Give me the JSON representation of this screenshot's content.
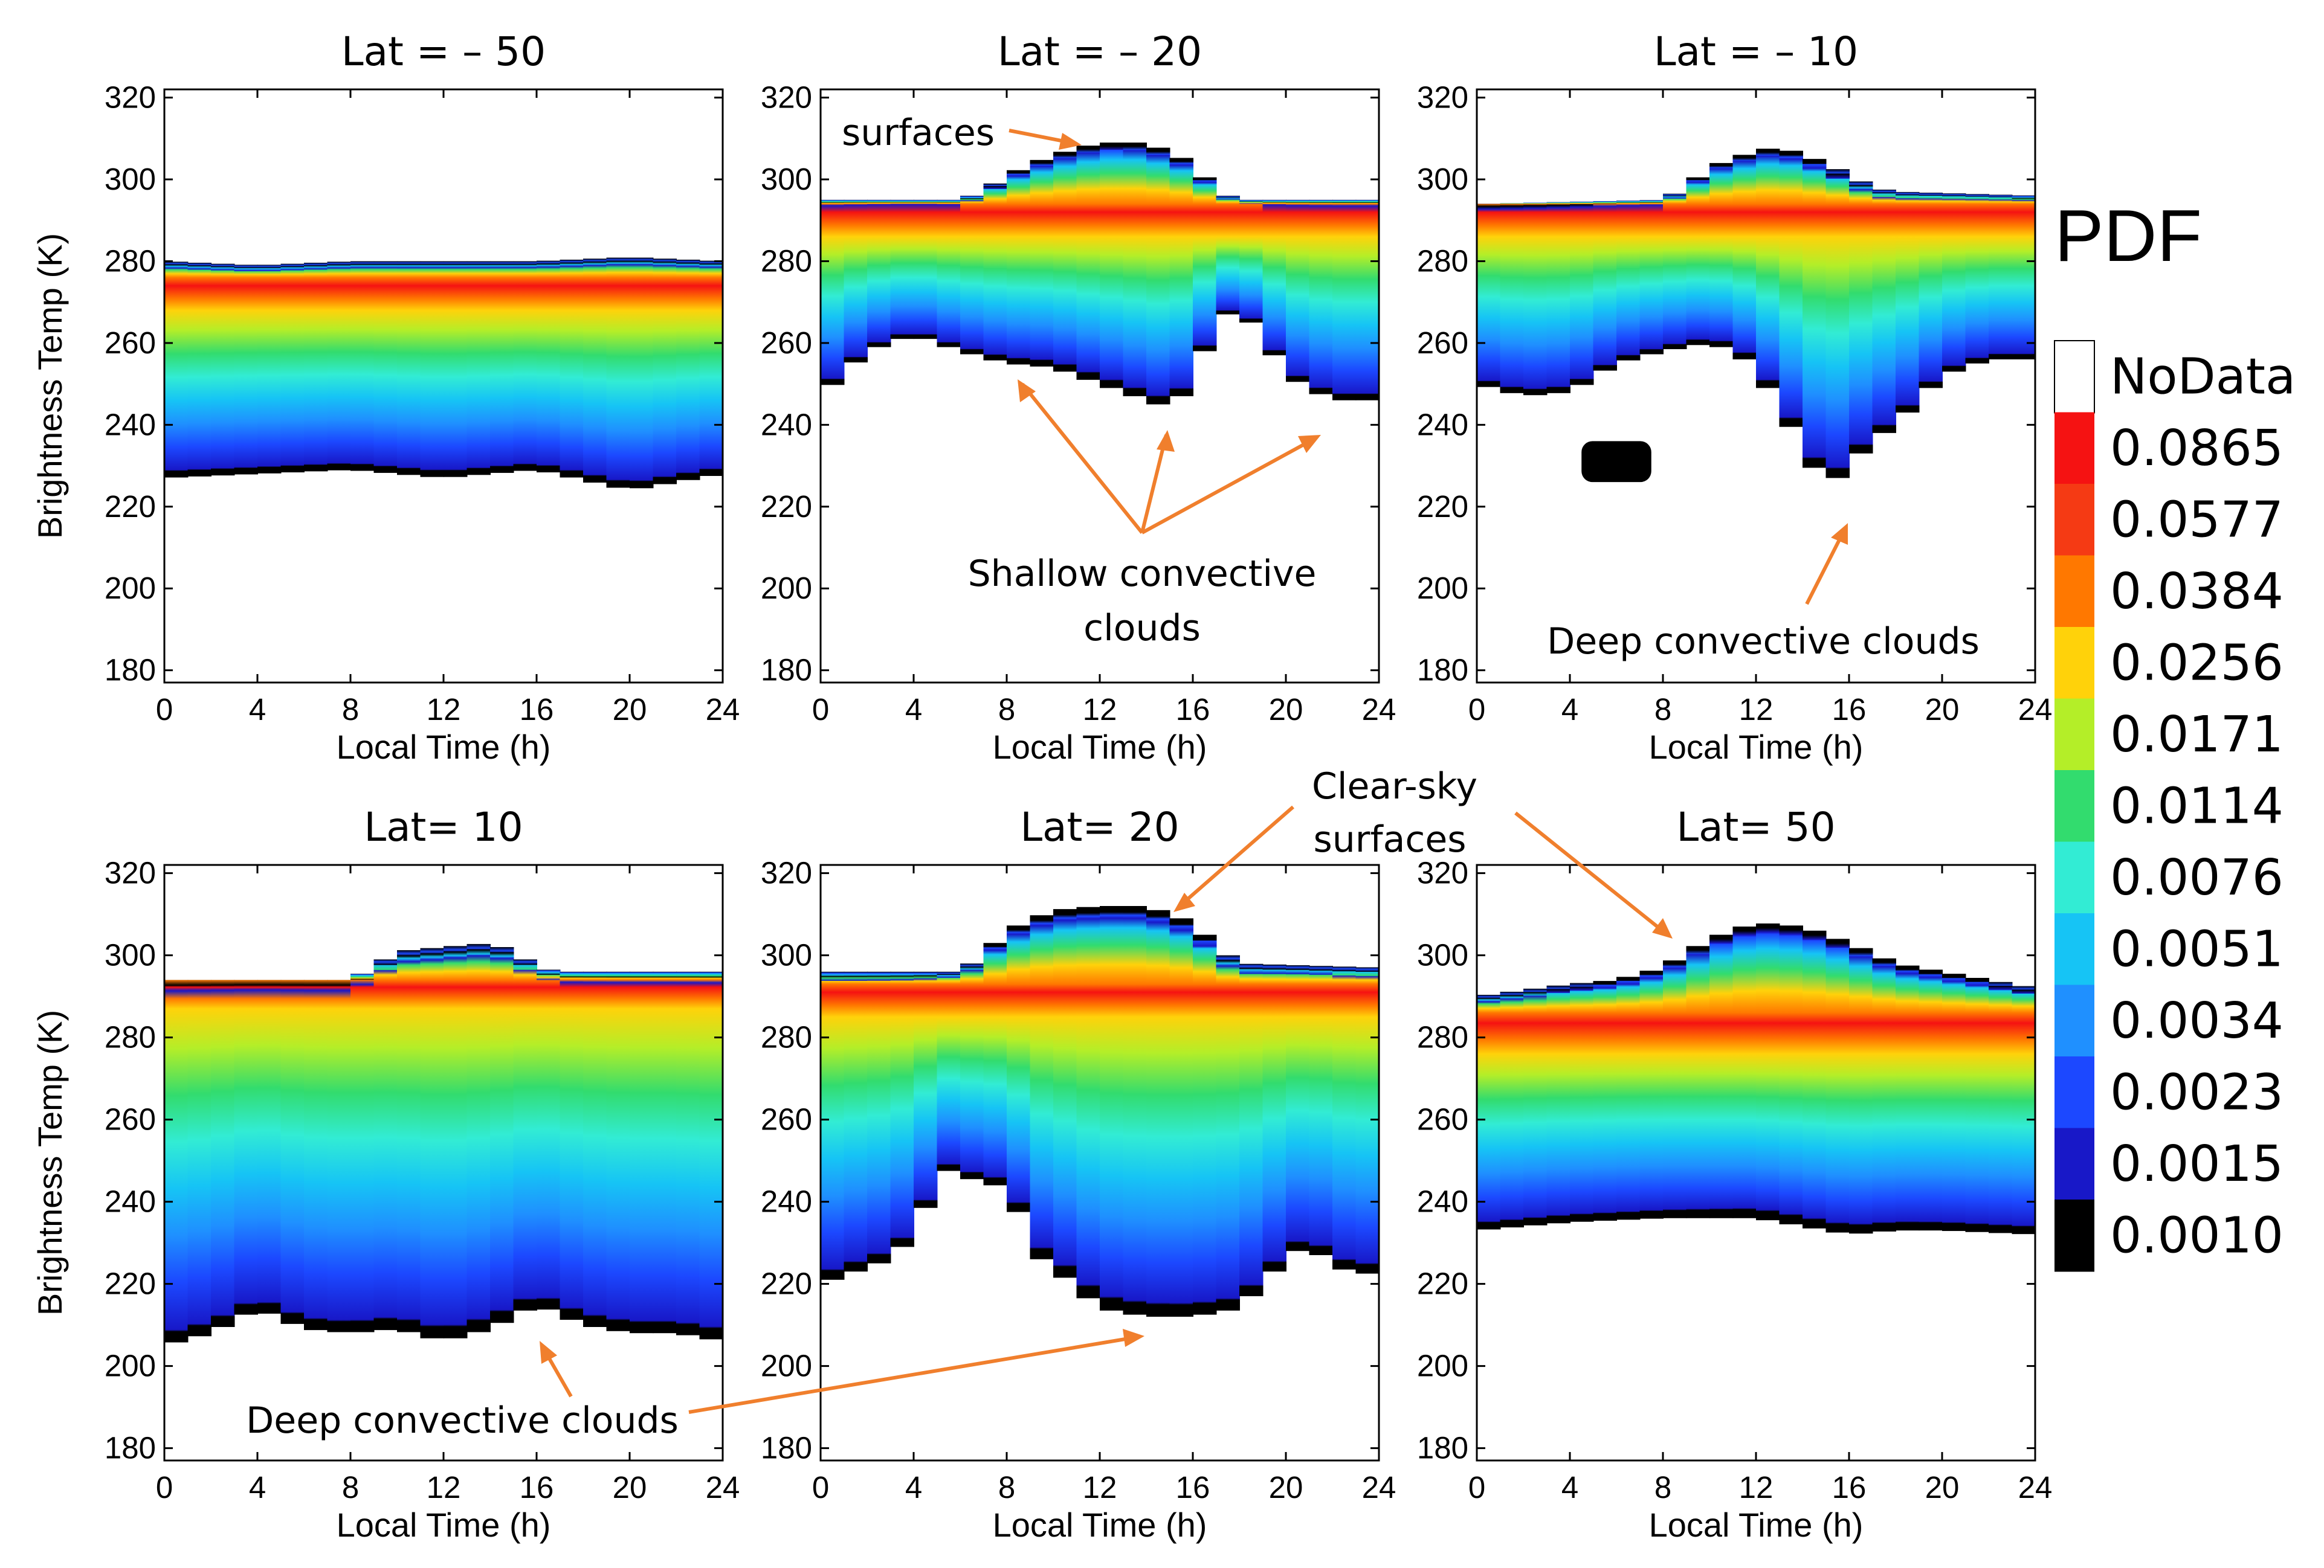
{
  "figure_caption_style": "six-panel contour PDF",
  "colors": {
    "levels": [
      "#000000",
      "#1818c8",
      "#1c48ff",
      "#1f90ff",
      "#16c4f5",
      "#32ecd4",
      "#32dc6e",
      "#b4ee28",
      "#ffd20a",
      "#ff7800",
      "#f51212",
      "#ffffff"
    ],
    "arrow": "#f07f2d"
  },
  "chart_data": [
    {
      "type": "heatmap",
      "title": "Lat = – 50",
      "xlabel": "Local Time (h)",
      "ylabel": "Brightness Temp (K)",
      "xlim": [
        0,
        24
      ],
      "ylim": [
        177,
        322
      ],
      "xticks": [
        0,
        4,
        8,
        12,
        16,
        20,
        24
      ],
      "yticks": [
        180,
        200,
        220,
        240,
        260,
        280,
        300,
        320
      ],
      "bottom_edge": [
        [
          0,
          227
        ],
        [
          4,
          228
        ],
        [
          8,
          229
        ],
        [
          12,
          227
        ],
        [
          16,
          229
        ],
        [
          20,
          224
        ],
        [
          24,
          228
        ]
      ],
      "top_edge": [
        [
          0,
          280
        ],
        [
          4,
          279
        ],
        [
          8,
          280
        ],
        [
          12,
          280
        ],
        [
          16,
          280
        ],
        [
          20,
          281
        ],
        [
          24,
          280
        ]
      ],
      "peak_band": [
        268,
        276
      ]
    },
    {
      "type": "heatmap",
      "title": "Lat = – 20",
      "xlabel": "Local Time (h)",
      "ylabel": "",
      "xlim": [
        0,
        24
      ],
      "ylim": [
        177,
        322
      ],
      "xticks": [
        0,
        4,
        8,
        12,
        16,
        20,
        24
      ],
      "yticks": [
        180,
        200,
        220,
        240,
        260,
        280,
        300,
        320
      ],
      "bottom_edge": [
        [
          0,
          247
        ],
        [
          2,
          258
        ],
        [
          4,
          262
        ],
        [
          6,
          258
        ],
        [
          8,
          255
        ],
        [
          10,
          254
        ],
        [
          12,
          250
        ],
        [
          13,
          248
        ],
        [
          14,
          246
        ],
        [
          15,
          244
        ],
        [
          16,
          250
        ],
        [
          17,
          266
        ],
        [
          18,
          268
        ],
        [
          19,
          262
        ],
        [
          20,
          252
        ],
        [
          22,
          246
        ],
        [
          24,
          246
        ]
      ],
      "top_edge": [
        [
          0,
          295
        ],
        [
          6,
          295
        ],
        [
          7,
          297
        ],
        [
          8,
          301
        ],
        [
          10,
          306
        ],
        [
          12,
          309
        ],
        [
          14,
          309
        ],
        [
          16,
          304
        ],
        [
          17,
          297
        ],
        [
          18,
          295
        ],
        [
          24,
          295
        ]
      ],
      "peak_band": [
        286,
        294
      ]
    },
    {
      "type": "heatmap",
      "title": "Lat = – 10",
      "xlabel": "Local Time (h)",
      "ylabel": "",
      "xlim": [
        0,
        24
      ],
      "ylim": [
        177,
        322
      ],
      "xticks": [
        0,
        4,
        8,
        12,
        16,
        20,
        24
      ],
      "yticks": [
        180,
        200,
        220,
        240,
        260,
        280,
        300,
        320
      ],
      "bottom_edge": [
        [
          0,
          250
        ],
        [
          2,
          247
        ],
        [
          4,
          248
        ],
        [
          6,
          255
        ],
        [
          8,
          258
        ],
        [
          10,
          260
        ],
        [
          11,
          258
        ],
        [
          12,
          254
        ],
        [
          13,
          244
        ],
        [
          14,
          235
        ],
        [
          15,
          224
        ],
        [
          16,
          230
        ],
        [
          17,
          236
        ],
        [
          18,
          240
        ],
        [
          19,
          246
        ],
        [
          20,
          252
        ],
        [
          22,
          256
        ],
        [
          24,
          256
        ]
      ],
      "top_edge": [
        [
          0,
          294
        ],
        [
          8,
          295
        ],
        [
          9,
          298
        ],
        [
          10,
          303
        ],
        [
          12,
          307
        ],
        [
          13,
          308
        ],
        [
          15,
          304
        ],
        [
          17,
          298
        ],
        [
          18,
          297
        ],
        [
          24,
          296
        ]
      ],
      "peak_band": [
        286,
        294
      ],
      "isolated_patches": [
        {
          "x": [
            4.5,
            7.5
          ],
          "y": [
            226,
            236
          ]
        }
      ]
    },
    {
      "type": "heatmap",
      "title": "Lat= 10",
      "xlabel": "Local Time (h)",
      "ylabel": "Brightness Temp (K)",
      "xlim": [
        0,
        24
      ],
      "ylim": [
        177,
        322
      ],
      "xticks": [
        0,
        4,
        8,
        12,
        16,
        20,
        24
      ],
      "yticks": [
        180,
        200,
        220,
        240,
        260,
        280,
        300,
        320
      ],
      "bottom_edge": [
        [
          0,
          205
        ],
        [
          2,
          208
        ],
        [
          4,
          214
        ],
        [
          6,
          209
        ],
        [
          8,
          208
        ],
        [
          10,
          209
        ],
        [
          12,
          206
        ],
        [
          14,
          209
        ],
        [
          16,
          215
        ],
        [
          18,
          210
        ],
        [
          20,
          208
        ],
        [
          22,
          208
        ],
        [
          24,
          206
        ]
      ],
      "top_edge": [
        [
          0,
          294
        ],
        [
          8,
          294
        ],
        [
          9,
          297
        ],
        [
          10,
          301
        ],
        [
          12,
          302
        ],
        [
          14,
          303
        ],
        [
          15,
          301
        ],
        [
          16,
          297
        ],
        [
          17,
          296
        ],
        [
          24,
          296
        ]
      ],
      "peak_band": [
        287,
        294
      ]
    },
    {
      "type": "heatmap",
      "title": "Lat= 20",
      "xlabel": "Local Time (h)",
      "ylabel": "",
      "xlim": [
        0,
        24
      ],
      "ylim": [
        177,
        322
      ],
      "xticks": [
        0,
        4,
        8,
        12,
        16,
        20,
        24
      ],
      "yticks": [
        180,
        200,
        220,
        240,
        260,
        280,
        300,
        320
      ],
      "bottom_edge": [
        [
          0,
          220
        ],
        [
          3,
          226
        ],
        [
          4,
          232
        ],
        [
          5,
          245
        ],
        [
          6,
          250
        ],
        [
          7,
          241
        ],
        [
          8,
          247
        ],
        [
          9,
          228
        ],
        [
          10,
          224
        ],
        [
          11,
          219
        ],
        [
          12,
          214
        ],
        [
          14,
          212
        ],
        [
          16,
          212
        ],
        [
          18,
          214
        ],
        [
          19,
          220
        ],
        [
          20,
          226
        ],
        [
          21,
          230
        ],
        [
          22,
          224
        ],
        [
          24,
          222
        ]
      ],
      "top_edge": [
        [
          0,
          296
        ],
        [
          6,
          296
        ],
        [
          7,
          300
        ],
        [
          8,
          306
        ],
        [
          10,
          311
        ],
        [
          12,
          312
        ],
        [
          14,
          312
        ],
        [
          16,
          308
        ],
        [
          17,
          302
        ],
        [
          18,
          298
        ],
        [
          24,
          297
        ]
      ],
      "peak_band": [
        285,
        293
      ]
    },
    {
      "type": "heatmap",
      "title": "Lat= 50",
      "xlabel": "Local Time (h)",
      "ylabel": "",
      "xlim": [
        0,
        24
      ],
      "ylim": [
        177,
        322
      ],
      "xticks": [
        0,
        4,
        8,
        12,
        16,
        20,
        24
      ],
      "yticks": [
        180,
        200,
        220,
        240,
        260,
        280,
        300,
        320
      ],
      "bottom_edge": [
        [
          0,
          233
        ],
        [
          4,
          235
        ],
        [
          8,
          236
        ],
        [
          12,
          236
        ],
        [
          14,
          234
        ],
        [
          16,
          232
        ],
        [
          18,
          233
        ],
        [
          20,
          233
        ],
        [
          24,
          232
        ]
      ],
      "top_edge": [
        [
          0,
          290
        ],
        [
          4,
          293
        ],
        [
          6,
          294
        ],
        [
          8,
          297
        ],
        [
          10,
          304
        ],
        [
          12,
          308
        ],
        [
          14,
          307
        ],
        [
          16,
          303
        ],
        [
          18,
          298
        ],
        [
          20,
          296
        ],
        [
          22,
          294
        ],
        [
          24,
          292
        ]
      ],
      "peak_band": [
        276,
        286
      ]
    }
  ],
  "panel_titles": [
    "Lat = – 50",
    "Lat = – 20",
    "Lat = – 10",
    "Lat= 10",
    "Lat= 20",
    "Lat= 50"
  ],
  "colorbar": {
    "title": "PDF",
    "labels": [
      "NoData",
      "0.0865",
      "0.0577",
      "0.0384",
      "0.0256",
      "0.0171",
      "0.0114",
      "0.0076",
      "0.0051",
      "0.0034",
      "0.0023",
      "0.0015",
      "0.0010"
    ]
  },
  "annotations": {
    "surfaces": "surfaces",
    "shallow_line1": "Shallow convective",
    "shallow_line2": "clouds",
    "deep_top": "Deep convective clouds",
    "clear_line1": "Clear-sky",
    "clear_line2": "surfaces",
    "deep_bottom": "Deep convective clouds"
  }
}
